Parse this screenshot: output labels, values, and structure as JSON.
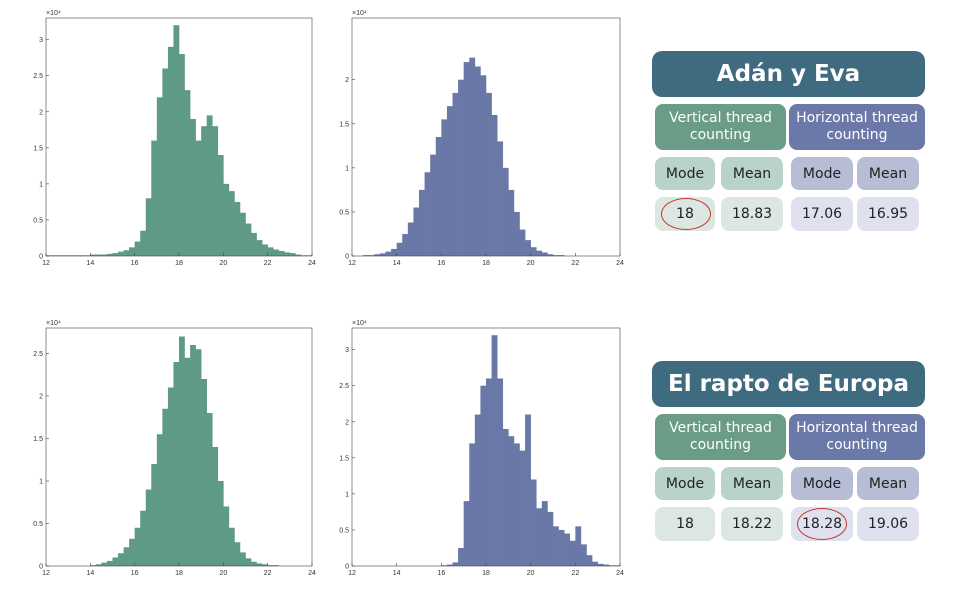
{
  "chart_data": [
    {
      "type": "histogram",
      "color": "#5f9a84",
      "y_scale_label": "×10⁴",
      "bins": [
        12,
        12.25,
        12.5,
        12.75,
        13,
        13.25,
        13.5,
        13.75,
        14,
        14.25,
        14.5,
        14.75,
        15,
        15.25,
        15.5,
        15.75,
        16,
        16.25,
        16.5,
        16.75,
        17,
        17.25,
        17.5,
        17.75,
        18,
        18.25,
        18.5,
        18.75,
        19,
        19.25,
        19.5,
        19.75,
        20,
        20.25,
        20.5,
        20.75,
        21,
        21.25,
        21.5,
        21.75,
        22,
        22.25,
        22.5,
        22.75,
        23,
        23.25,
        23.5,
        23.75,
        24
      ],
      "values": [
        0.01,
        0.01,
        0.01,
        0.01,
        0.01,
        0.01,
        0.01,
        0.01,
        0.02,
        0.02,
        0.02,
        0.03,
        0.04,
        0.06,
        0.08,
        0.12,
        0.2,
        0.35,
        0.8,
        1.6,
        2.2,
        2.6,
        2.9,
        3.2,
        2.8,
        2.3,
        1.9,
        1.6,
        1.8,
        1.95,
        1.8,
        1.4,
        1.0,
        0.9,
        0.75,
        0.6,
        0.45,
        0.32,
        0.22,
        0.16,
        0.12,
        0.09,
        0.07,
        0.05,
        0.04,
        0.02,
        0.01,
        0.01
      ],
      "xlim": [
        12,
        24
      ],
      "xticks": [
        12,
        14,
        16,
        18,
        20,
        22,
        24
      ],
      "ylim": [
        0,
        3.3
      ],
      "yticks": [
        0,
        0.5,
        1,
        1.5,
        2,
        2.5,
        3
      ]
    },
    {
      "type": "histogram",
      "color": "#6a78a8",
      "y_scale_label": "×10⁴",
      "bins": [
        12,
        12.25,
        12.5,
        12.75,
        13,
        13.25,
        13.5,
        13.75,
        14,
        14.25,
        14.5,
        14.75,
        15,
        15.25,
        15.5,
        15.75,
        16,
        16.25,
        16.5,
        16.75,
        17,
        17.25,
        17.5,
        17.75,
        18,
        18.25,
        18.5,
        18.75,
        19,
        19.25,
        19.5,
        19.75,
        20,
        20.25,
        20.5,
        20.75,
        21,
        21.25,
        21.5,
        21.75,
        22,
        22.25,
        22.5,
        22.75,
        23,
        23.25,
        23.5,
        23.75,
        24
      ],
      "values": [
        0,
        0,
        0.01,
        0.01,
        0.02,
        0.03,
        0.05,
        0.08,
        0.15,
        0.25,
        0.38,
        0.55,
        0.75,
        0.95,
        1.15,
        1.35,
        1.55,
        1.7,
        1.85,
        2.0,
        2.2,
        2.25,
        2.15,
        2.05,
        1.85,
        1.6,
        1.3,
        1.0,
        0.75,
        0.5,
        0.3,
        0.18,
        0.1,
        0.06,
        0.04,
        0.02,
        0.01,
        0.01,
        0,
        0,
        0,
        0,
        0,
        0,
        0,
        0,
        0,
        0
      ],
      "xlim": [
        12,
        24
      ],
      "xticks": [
        12,
        14,
        16,
        18,
        20,
        22,
        24
      ],
      "ylim": [
        0,
        2.7
      ],
      "yticks": [
        0,
        0.5,
        1,
        1.5,
        2
      ]
    },
    {
      "type": "histogram",
      "color": "#5f9a84",
      "y_scale_label": "×10⁴",
      "bins": [
        12,
        12.25,
        12.5,
        12.75,
        13,
        13.25,
        13.5,
        13.75,
        14,
        14.25,
        14.5,
        14.75,
        15,
        15.25,
        15.5,
        15.75,
        16,
        16.25,
        16.5,
        16.75,
        17,
        17.25,
        17.5,
        17.75,
        18,
        18.25,
        18.5,
        18.75,
        19,
        19.25,
        19.5,
        19.75,
        20,
        20.25,
        20.5,
        20.75,
        21,
        21.25,
        21.5,
        21.75,
        22,
        22.25,
        22.5,
        22.75,
        23,
        23.25,
        23.5,
        23.75,
        24
      ],
      "values": [
        0,
        0,
        0,
        0,
        0,
        0,
        0,
        0,
        0.01,
        0.02,
        0.04,
        0.06,
        0.1,
        0.15,
        0.22,
        0.32,
        0.45,
        0.65,
        0.9,
        1.2,
        1.55,
        1.85,
        2.1,
        2.4,
        2.7,
        2.45,
        2.6,
        2.55,
        2.2,
        1.8,
        1.4,
        1.0,
        0.7,
        0.45,
        0.28,
        0.16,
        0.09,
        0.05,
        0.03,
        0.02,
        0.01,
        0.01,
        0,
        0,
        0,
        0,
        0,
        0
      ],
      "xlim": [
        12,
        24
      ],
      "xticks": [
        12,
        14,
        16,
        18,
        20,
        22,
        24
      ],
      "ylim": [
        0,
        2.8
      ],
      "yticks": [
        0,
        0.5,
        1,
        1.5,
        2,
        2.5
      ]
    },
    {
      "type": "histogram",
      "color": "#6a78a8",
      "y_scale_label": "×10⁴",
      "bins": [
        12,
        12.25,
        12.5,
        12.75,
        13,
        13.25,
        13.5,
        13.75,
        14,
        14.25,
        14.5,
        14.75,
        15,
        15.25,
        15.5,
        15.75,
        16,
        16.25,
        16.5,
        16.75,
        17,
        17.25,
        17.5,
        17.75,
        18,
        18.25,
        18.5,
        18.75,
        19,
        19.25,
        19.5,
        19.75,
        20,
        20.25,
        20.5,
        20.75,
        21,
        21.25,
        21.5,
        21.75,
        22,
        22.25,
        22.5,
        22.75,
        23,
        23.25,
        23.5,
        23.75,
        24
      ],
      "values": [
        0,
        0,
        0,
        0,
        0,
        0,
        0,
        0,
        0,
        0,
        0,
        0,
        0,
        0,
        0,
        0,
        0.01,
        0.02,
        0.05,
        0.25,
        0.9,
        1.7,
        2.1,
        2.5,
        2.6,
        3.2,
        2.6,
        1.9,
        1.8,
        1.7,
        1.6,
        2.1,
        1.2,
        0.8,
        0.9,
        0.75,
        0.55,
        0.5,
        0.45,
        0.35,
        0.55,
        0.3,
        0.15,
        0.06,
        0.03,
        0.02,
        0.01,
        0.01
      ],
      "xlim": [
        12,
        24
      ],
      "xticks": [
        12,
        14,
        16,
        18,
        20,
        22,
        24
      ],
      "ylim": [
        0,
        3.3
      ],
      "yticks": [
        0,
        0.5,
        1,
        1.5,
        2,
        2.5,
        3
      ]
    }
  ],
  "tables": [
    {
      "title": "Adán y Eva",
      "groups": [
        "Vertical thread counting",
        "Horizontal thread counting"
      ],
      "headers": [
        "Mode",
        "Mean",
        "Mode",
        "Mean"
      ],
      "values": [
        "18",
        "18.83",
        "17.06",
        "16.95"
      ]
    },
    {
      "title": "El rapto de Europa",
      "groups": [
        "Vertical thread counting",
        "Horizontal thread counting"
      ],
      "headers": [
        "Mode",
        "Mean",
        "Mode",
        "Mean"
      ],
      "values": [
        "18",
        "18.22",
        "18.28",
        "19.06"
      ]
    }
  ]
}
